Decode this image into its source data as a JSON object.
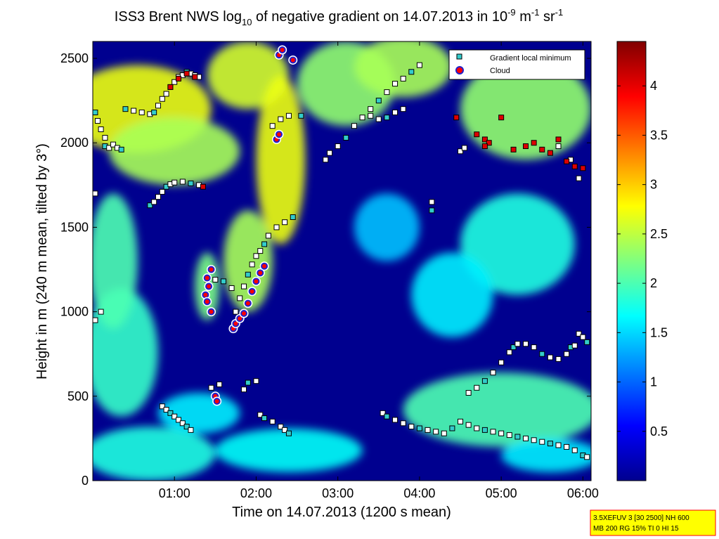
{
  "chart_data": {
    "type": "heatmap",
    "title": {
      "main": "ISS3 Brent NWS log",
      "sub": "10",
      "mid": " of negative gradient on 14.07.2013 in 10",
      "sup1": "-9",
      "m": " m",
      "sup2": "-1",
      "sr": " sr",
      "sup3": "-1"
    },
    "xlabel": "Time on 14.07.2013 (1200 s mean)",
    "ylabel": "Height in m (240 m mean, tilted by 3°)",
    "x_range_hours": [
      0.0,
      6.1
    ],
    "y_range_m": [
      0,
      2600
    ],
    "x_ticks": [
      {
        "value": 1,
        "label": "01:00"
      },
      {
        "value": 2,
        "label": "02:00"
      },
      {
        "value": 3,
        "label": "03:00"
      },
      {
        "value": 4,
        "label": "04:00"
      },
      {
        "value": 5,
        "label": "05:00"
      },
      {
        "value": 6,
        "label": "06:00"
      }
    ],
    "y_ticks": [
      {
        "value": 0,
        "label": "0"
      },
      {
        "value": 500,
        "label": "500"
      },
      {
        "value": 1000,
        "label": "1000"
      },
      {
        "value": 1500,
        "label": "1500"
      },
      {
        "value": 2000,
        "label": "2000"
      },
      {
        "value": 2500,
        "label": "2500"
      }
    ],
    "colorbar": {
      "range": [
        0,
        4.45
      ],
      "ticks": [
        {
          "value": 0.5,
          "label": "0.5"
        },
        {
          "value": 1.0,
          "label": "1"
        },
        {
          "value": 1.5,
          "label": "1.5"
        },
        {
          "value": 2.0,
          "label": "2"
        },
        {
          "value": 2.5,
          "label": "2.5"
        },
        {
          "value": 3.0,
          "label": "3"
        },
        {
          "value": 3.5,
          "label": "3.5"
        },
        {
          "value": 4.0,
          "label": "4"
        }
      ]
    },
    "legend": {
      "placement": "top-right",
      "entries": [
        {
          "name": "Gradient local minimum",
          "marker": "square",
          "color": "#33cccc"
        },
        {
          "name": "Cloud",
          "marker": "circle",
          "color": "#ff0000"
        }
      ]
    },
    "field_blobs": [
      {
        "x": 0.7,
        "y": 160,
        "rx": 0.8,
        "ry": 160,
        "v": 1.8
      },
      {
        "x": 2.4,
        "y": 180,
        "rx": 0.9,
        "ry": 130,
        "v": 1.7
      },
      {
        "x": 5.0,
        "y": 420,
        "rx": 1.2,
        "ry": 220,
        "v": 2.0
      },
      {
        "x": 5.6,
        "y": 150,
        "rx": 0.6,
        "ry": 100,
        "v": 1.6
      },
      {
        "x": 0.35,
        "y": 760,
        "rx": 0.45,
        "ry": 380,
        "v": 1.9
      },
      {
        "x": 0.55,
        "y": 2200,
        "rx": 0.9,
        "ry": 260,
        "v": 2.7
      },
      {
        "x": 1.0,
        "y": 1950,
        "rx": 0.8,
        "ry": 200,
        "v": 2.4
      },
      {
        "x": 0.25,
        "y": 1300,
        "rx": 0.3,
        "ry": 400,
        "v": 2.0
      },
      {
        "x": 1.9,
        "y": 2400,
        "rx": 0.5,
        "ry": 200,
        "v": 2.6
      },
      {
        "x": 2.3,
        "y": 1900,
        "rx": 0.3,
        "ry": 500,
        "v": 2.7
      },
      {
        "x": 3.1,
        "y": 2350,
        "rx": 0.6,
        "ry": 250,
        "v": 2.3
      },
      {
        "x": 3.8,
        "y": 2450,
        "rx": 0.6,
        "ry": 180,
        "v": 2.4
      },
      {
        "x": 5.3,
        "y": 2200,
        "rx": 0.8,
        "ry": 300,
        "v": 2.3
      },
      {
        "x": 5.2,
        "y": 1400,
        "rx": 0.7,
        "ry": 300,
        "v": 1.8
      },
      {
        "x": 4.4,
        "y": 1100,
        "rx": 0.5,
        "ry": 250,
        "v": 1.6
      },
      {
        "x": 1.9,
        "y": 1300,
        "rx": 0.3,
        "ry": 300,
        "v": 2.4
      },
      {
        "x": 1.4,
        "y": 1150,
        "rx": 0.15,
        "ry": 200,
        "v": 2.2
      },
      {
        "x": 3.6,
        "y": 1500,
        "rx": 0.4,
        "ry": 200,
        "v": 1.4
      },
      {
        "x": 1.3,
        "y": 400,
        "rx": 0.5,
        "ry": 120,
        "v": 1.6
      }
    ],
    "series": [
      {
        "name": "Gradient local minimum",
        "points": [
          [
            0.03,
            2180
          ],
          [
            0.06,
            2130
          ],
          [
            0.1,
            2080
          ],
          [
            0.15,
            2030
          ],
          [
            0.15,
            1980
          ],
          [
            0.2,
            1970
          ],
          [
            0.25,
            1990
          ],
          [
            0.3,
            1970
          ],
          [
            0.35,
            1960
          ],
          [
            0.03,
            1700
          ],
          [
            0.1,
            1000
          ],
          [
            0.03,
            950
          ],
          [
            0.4,
            2200
          ],
          [
            0.5,
            2190
          ],
          [
            0.6,
            2180
          ],
          [
            0.7,
            2170
          ],
          [
            0.75,
            2180
          ],
          [
            0.8,
            2220
          ],
          [
            0.85,
            2260
          ],
          [
            0.9,
            2290
          ],
          [
            0.95,
            2330
          ],
          [
            1.0,
            2360
          ],
          [
            1.05,
            2390
          ],
          [
            1.1,
            2400
          ],
          [
            1.15,
            2420
          ],
          [
            1.2,
            2410
          ],
          [
            1.25,
            2400
          ],
          [
            1.3,
            2390
          ],
          [
            0.7,
            1630
          ],
          [
            0.75,
            1650
          ],
          [
            0.8,
            1680
          ],
          [
            0.85,
            1710
          ],
          [
            0.9,
            1740
          ],
          [
            0.95,
            1755
          ],
          [
            1.0,
            1765
          ],
          [
            1.1,
            1770
          ],
          [
            1.2,
            1760
          ],
          [
            1.3,
            1750
          ],
          [
            1.4,
            1190
          ],
          [
            1.5,
            1190
          ],
          [
            1.6,
            1180
          ],
          [
            1.7,
            1140
          ],
          [
            0.85,
            440
          ],
          [
            0.9,
            420
          ],
          [
            0.95,
            400
          ],
          [
            1.0,
            380
          ],
          [
            1.05,
            360
          ],
          [
            1.1,
            340
          ],
          [
            1.15,
            320
          ],
          [
            1.2,
            300
          ],
          [
            1.45,
            550
          ],
          [
            1.55,
            570
          ],
          [
            1.9,
            580
          ],
          [
            2.0,
            590
          ],
          [
            1.85,
            540
          ],
          [
            2.05,
            390
          ],
          [
            2.1,
            370
          ],
          [
            2.2,
            350
          ],
          [
            2.3,
            320
          ],
          [
            2.35,
            300
          ],
          [
            2.4,
            280
          ],
          [
            1.75,
            1000
          ],
          [
            1.8,
            1080
          ],
          [
            1.85,
            1150
          ],
          [
            1.9,
            1220
          ],
          [
            1.95,
            1280
          ],
          [
            2.0,
            1330
          ],
          [
            2.05,
            1360
          ],
          [
            2.1,
            1400
          ],
          [
            2.15,
            1450
          ],
          [
            2.25,
            1500
          ],
          [
            2.35,
            1530
          ],
          [
            2.45,
            1560
          ],
          [
            2.2,
            2100
          ],
          [
            2.3,
            2140
          ],
          [
            2.4,
            2160
          ],
          [
            2.55,
            2160
          ],
          [
            2.85,
            1900
          ],
          [
            2.9,
            1940
          ],
          [
            3.0,
            1980
          ],
          [
            3.1,
            2030
          ],
          [
            3.2,
            2100
          ],
          [
            3.3,
            2150
          ],
          [
            3.4,
            2200
          ],
          [
            3.5,
            2250
          ],
          [
            3.6,
            2300
          ],
          [
            3.7,
            2350
          ],
          [
            3.8,
            2380
          ],
          [
            3.9,
            2420
          ],
          [
            4.0,
            2460
          ],
          [
            3.4,
            2160
          ],
          [
            3.5,
            2140
          ],
          [
            3.6,
            2150
          ],
          [
            3.7,
            2180
          ],
          [
            3.8,
            2200
          ],
          [
            4.15,
            1650
          ],
          [
            4.15,
            1600
          ],
          [
            4.5,
            1950
          ],
          [
            4.55,
            1970
          ],
          [
            3.55,
            400
          ],
          [
            3.6,
            380
          ],
          [
            3.7,
            360
          ],
          [
            3.8,
            340
          ],
          [
            3.9,
            320
          ],
          [
            4.0,
            310
          ],
          [
            4.1,
            300
          ],
          [
            4.2,
            290
          ],
          [
            4.3,
            280
          ],
          [
            4.4,
            310
          ],
          [
            4.5,
            350
          ],
          [
            4.6,
            330
          ],
          [
            4.7,
            310
          ],
          [
            4.8,
            300
          ],
          [
            4.9,
            290
          ],
          [
            5.0,
            280
          ],
          [
            5.1,
            270
          ],
          [
            5.2,
            260
          ],
          [
            5.3,
            250
          ],
          [
            5.4,
            240
          ],
          [
            5.5,
            230
          ],
          [
            5.6,
            220
          ],
          [
            5.7,
            210
          ],
          [
            5.8,
            200
          ],
          [
            5.9,
            180
          ],
          [
            6.0,
            150
          ],
          [
            6.05,
            140
          ],
          [
            4.6,
            520
          ],
          [
            4.7,
            550
          ],
          [
            4.8,
            590
          ],
          [
            4.9,
            640
          ],
          [
            5.0,
            700
          ],
          [
            5.1,
            760
          ],
          [
            5.15,
            790
          ],
          [
            5.2,
            810
          ],
          [
            5.3,
            810
          ],
          [
            5.4,
            790
          ],
          [
            5.5,
            750
          ],
          [
            5.6,
            730
          ],
          [
            5.7,
            720
          ],
          [
            5.8,
            750
          ],
          [
            5.85,
            790
          ],
          [
            5.9,
            800
          ],
          [
            5.95,
            870
          ],
          [
            6.0,
            850
          ],
          [
            6.05,
            820
          ],
          [
            5.7,
            1980
          ],
          [
            5.85,
            1900
          ],
          [
            5.95,
            1790
          ]
        ]
      },
      {
        "name": "Cloud",
        "points": [
          [
            1.42,
            1150
          ],
          [
            1.38,
            1100
          ],
          [
            1.4,
            1060
          ],
          [
            1.45,
            1000
          ],
          [
            1.4,
            1200
          ],
          [
            1.45,
            1250
          ],
          [
            1.5,
            500
          ],
          [
            1.52,
            470
          ],
          [
            1.72,
            900
          ],
          [
            1.75,
            930
          ],
          [
            1.8,
            960
          ],
          [
            1.85,
            990
          ],
          [
            1.9,
            1050
          ],
          [
            1.95,
            1120
          ],
          [
            2.0,
            1180
          ],
          [
            2.05,
            1230
          ],
          [
            2.1,
            1270
          ],
          [
            2.25,
            2020
          ],
          [
            2.28,
            2050
          ],
          [
            2.28,
            2520
          ],
          [
            2.32,
            2550
          ],
          [
            2.45,
            2490
          ]
        ]
      },
      {
        "name": "Red squares",
        "points": [
          [
            0.95,
            2330
          ],
          [
            1.05,
            2380
          ],
          [
            1.15,
            2410
          ],
          [
            1.25,
            2390
          ],
          [
            1.35,
            1740
          ],
          [
            4.7,
            2050
          ],
          [
            4.8,
            2020
          ],
          [
            4.85,
            2000
          ],
          [
            5.0,
            2150
          ],
          [
            5.15,
            1960
          ],
          [
            5.3,
            1980
          ],
          [
            5.4,
            2000
          ],
          [
            5.5,
            1960
          ],
          [
            5.6,
            1940
          ],
          [
            5.7,
            2020
          ],
          [
            5.8,
            1890
          ],
          [
            5.9,
            1860
          ],
          [
            6.0,
            1850
          ],
          [
            4.45,
            2150
          ],
          [
            4.8,
            1980
          ]
        ]
      }
    ],
    "info_box": {
      "line1": "3.5XEFUV 3 [30 2500] NH 600",
      "line2": "MB 200 RG 15% TI 0 HI 15"
    }
  },
  "colors": {
    "background": "#ffffff",
    "low": "#00008f",
    "info_fill": "#ffff00",
    "info_border": "#ff0000"
  }
}
